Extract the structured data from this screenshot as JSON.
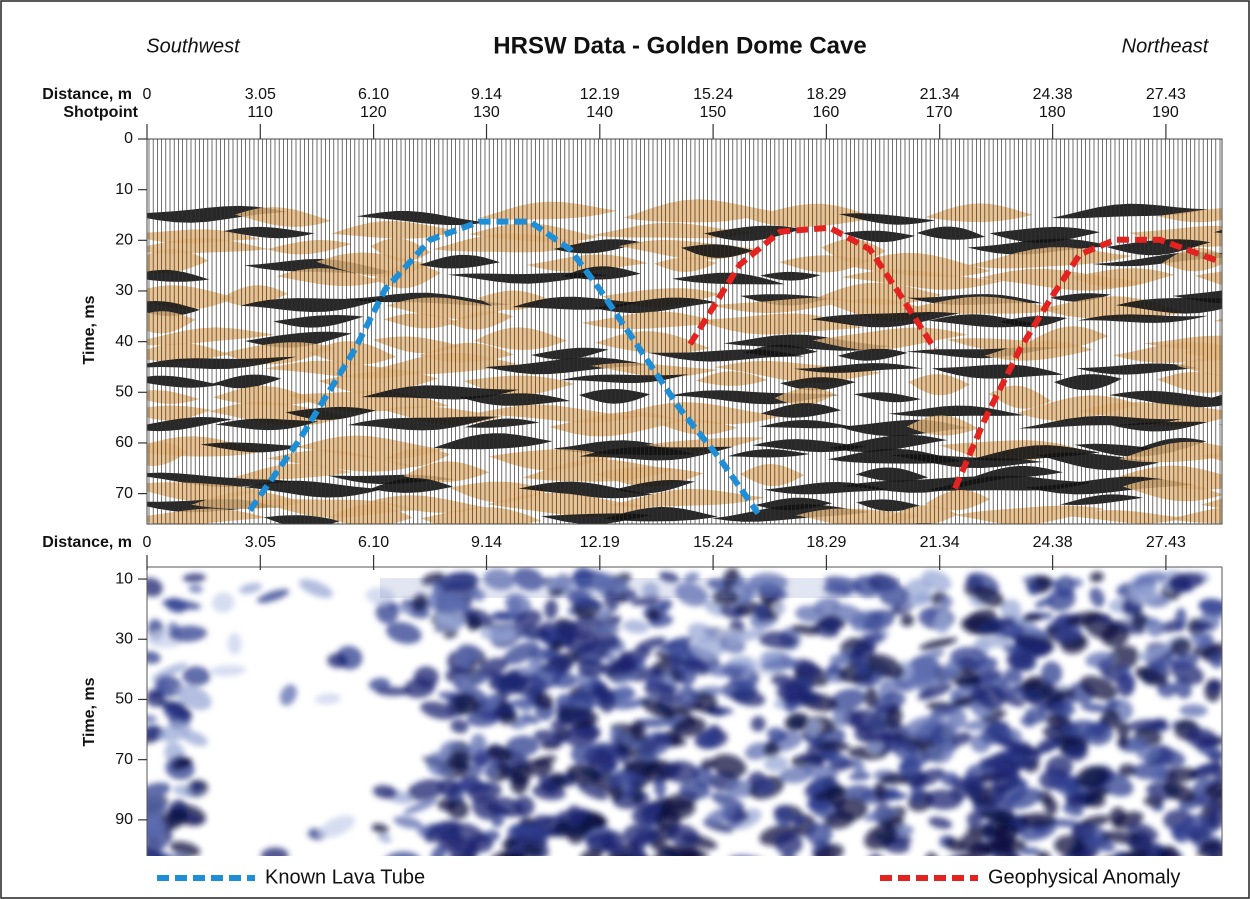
{
  "chart_data": [
    {
      "type": "line",
      "title": "HRSW Data - Golden Dome Cave",
      "annotations": [
        "Southwest",
        "Northeast"
      ],
      "x_label": "Distance, m",
      "x2_label": "Shotpoint",
      "y_label": "Time, ms",
      "xlim": [
        0,
        28.94
      ],
      "xticks": [
        0,
        3.05,
        {
          "value": 6.1,
          "label": "6.10"
        },
        9.14,
        12.19,
        15.24,
        18.29,
        21.34,
        24.38,
        27.43
      ],
      "x2lim": [
        100,
        195
      ],
      "x2ticks": [
        110,
        120,
        130,
        140,
        150,
        160,
        170,
        180,
        190
      ],
      "ylim": [
        0,
        76
      ],
      "yticks": [
        0,
        10,
        20,
        30,
        40,
        50,
        60,
        70
      ],
      "y_inverted": true,
      "series": [
        {
          "name": "Known Lava Tube",
          "color": "#1e8fd6",
          "x": [
            2.77,
            4.12,
            5.6,
            6.41,
            7.62,
            8.96,
            10.31,
            11.39,
            12.19,
            13.27,
            14.35,
            15.42,
            16.45
          ],
          "values": [
            73.3,
            59.2,
            41.5,
            29.7,
            19.9,
            16.3,
            16.3,
            21.8,
            29.7,
            41.5,
            53.3,
            63.1,
            73.9
          ]
        },
        {
          "name": "Geophysical Anomaly",
          "color": "#e3231f",
          "x": [
            14.62,
            15.96,
            17.04,
            18.38,
            19.46,
            20.27,
            21.21,
            null,
            21.75,
            22.56,
            23.5,
            24.31,
            25.11,
            26.06,
            27.27,
            28.88
          ],
          "values": [
            40.5,
            24.8,
            18.3,
            17.5,
            21.8,
            30.7,
            41.5,
            null,
            69.0,
            55.3,
            41.5,
            31.7,
            22.8,
            19.9,
            19.9,
            24.2
          ]
        }
      ],
      "legend": "bottom"
    },
    {
      "type": "image",
      "x_label": "Distance, m",
      "y_label": "Time, ms",
      "xlim": [
        0,
        28.94
      ],
      "xticks": [
        0,
        3.05,
        {
          "value": 6.1,
          "label": "6.10"
        },
        9.14,
        12.19,
        15.24,
        18.29,
        21.34,
        24.38,
        27.43
      ],
      "ylim": [
        6,
        102
      ],
      "yticks": [
        10,
        30,
        50,
        70,
        90
      ],
      "y_inverted": true
    }
  ]
}
